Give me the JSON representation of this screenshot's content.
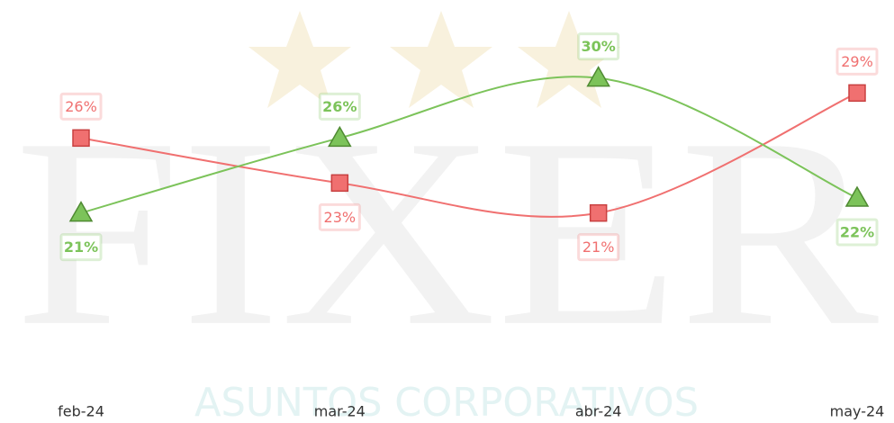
{
  "chart_data": {
    "type": "line",
    "watermark": {
      "logo": "FIXER",
      "tagline": "ASUNTOS CORPORATIVOS"
    },
    "categories": [
      "feb-24",
      "mar-24",
      "abr-24",
      "may-24"
    ],
    "ylim": [
      10,
      34
    ],
    "smooth": true,
    "series": [
      {
        "color": "#f07070",
        "marker": "square",
        "values": [
          26,
          23,
          21,
          29
        ],
        "value_labels": [
          "26%",
          "23%",
          "21%",
          "29%"
        ]
      },
      {
        "color": "#7cc35a",
        "marker": "triangle",
        "values": [
          21,
          26,
          30,
          22
        ],
        "value_labels": [
          "21%",
          "26%",
          "30%",
          "22%"
        ]
      }
    ]
  }
}
